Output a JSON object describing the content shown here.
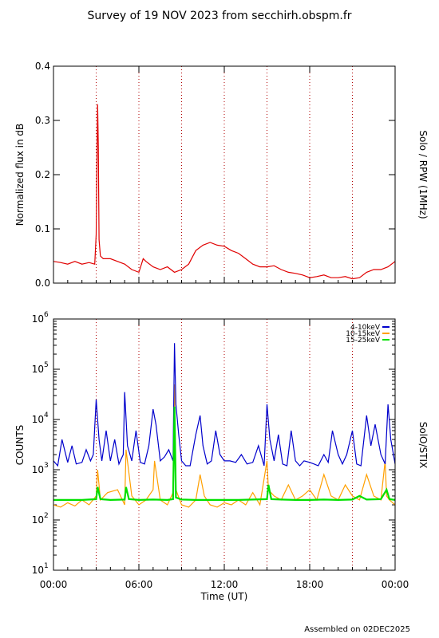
{
  "title": "Survey of 19 NOV 2023 from secchirh.obspm.fr",
  "footer": "Assembled on 02DEC2025",
  "colors": {
    "rpw": "#e00000",
    "low": "#0000cc",
    "mid": "#ffa000",
    "high": "#00e000",
    "hour_lines": "#b00000"
  },
  "chart_data": [
    {
      "type": "line",
      "right_label": "Solo / RPW (1MHz)",
      "ylabel": "Normalized flux in dB",
      "xlim": [
        0,
        24
      ],
      "ylim": [
        0,
        0.4
      ],
      "yticks": [
        "0.0",
        "0.1",
        "0.2",
        "0.3",
        "0.4"
      ],
      "grid_x_hours": [
        3,
        6,
        9,
        12,
        15,
        18,
        21
      ],
      "series": [
        {
          "x": [
            0,
            0.5,
            1,
            1.5,
            2,
            2.5,
            2.9,
            3.0,
            3.1,
            3.15,
            3.2,
            3.3,
            3.5,
            4,
            4.5,
            5,
            5.5,
            6,
            6.3,
            6.5,
            7,
            7.5,
            8,
            8.5,
            9,
            9.5,
            10,
            10.5,
            11,
            11.5,
            12,
            12.5,
            13,
            13.5,
            14,
            14.5,
            15,
            15.5,
            16,
            16.5,
            17,
            17.5,
            18,
            18.5,
            19,
            19.5,
            20,
            20.5,
            21,
            21.5,
            22,
            22.5,
            23,
            23.5,
            24
          ],
          "y": [
            0.04,
            0.038,
            0.035,
            0.04,
            0.035,
            0.038,
            0.035,
            0.09,
            0.33,
            0.25,
            0.08,
            0.05,
            0.045,
            0.045,
            0.04,
            0.035,
            0.025,
            0.02,
            0.045,
            0.04,
            0.03,
            0.025,
            0.03,
            0.02,
            0.025,
            0.035,
            0.06,
            0.07,
            0.075,
            0.07,
            0.068,
            0.06,
            0.055,
            0.045,
            0.035,
            0.03,
            0.03,
            0.032,
            0.025,
            0.02,
            0.018,
            0.015,
            0.01,
            0.012,
            0.015,
            0.01,
            0.01,
            0.012,
            0.008,
            0.01,
            0.02,
            0.025,
            0.025,
            0.03,
            0.04
          ]
        }
      ]
    },
    {
      "type": "line",
      "right_label": "SolO/STIX",
      "ylabel": "COUNTS",
      "xlabel": "Time (UT)",
      "xticks": [
        "00:00",
        "06:00",
        "12:00",
        "18:00",
        "00:00"
      ],
      "xlim": [
        0,
        24
      ],
      "ylim_log10": [
        1,
        6
      ],
      "ytick_bases": [
        "10",
        "10",
        "10",
        "10",
        "10",
        "10"
      ],
      "ytick_exps": [
        "1",
        "2",
        "3",
        "4",
        "5",
        "6"
      ],
      "grid_x_hours": [
        3,
        6,
        9,
        12,
        15,
        18,
        21
      ],
      "series": [
        {
          "name": "4-10keV",
          "x": [
            0,
            0.3,
            0.6,
            1,
            1.3,
            1.6,
            2,
            2.3,
            2.6,
            2.8,
            3.0,
            3.2,
            3.4,
            3.7,
            4,
            4.3,
            4.6,
            4.9,
            5.0,
            5.2,
            5.5,
            5.8,
            6.1,
            6.4,
            6.7,
            7.0,
            7.2,
            7.5,
            7.8,
            8.1,
            8.4,
            8.5,
            8.6,
            8.8,
            9.0,
            9.3,
            9.6,
            10.0,
            10.3,
            10.5,
            10.8,
            11.1,
            11.4,
            11.7,
            12.0,
            12.4,
            12.8,
            13.2,
            13.6,
            14.0,
            14.4,
            14.8,
            15.0,
            15.2,
            15.5,
            15.8,
            16.1,
            16.4,
            16.7,
            17.0,
            17.3,
            17.6,
            18.0,
            18.3,
            18.6,
            19.0,
            19.3,
            19.6,
            20.0,
            20.3,
            20.6,
            21.0,
            21.3,
            21.6,
            22.0,
            22.3,
            22.6,
            23.0,
            23.3,
            23.5,
            23.7,
            24
          ],
          "y": [
            1500,
            1200,
            4000,
            1400,
            3000,
            1300,
            1400,
            2500,
            1500,
            2000,
            25000,
            4000,
            1500,
            6000,
            1500,
            4000,
            1300,
            2000,
            35000,
            3000,
            1500,
            6000,
            1400,
            1300,
            3000,
            16000,
            8000,
            1500,
            1800,
            2500,
            1500,
            330000,
            20000,
            5000,
            1500,
            1200,
            1200,
            5000,
            12000,
            3000,
            1300,
            1500,
            6000,
            2000,
            1500,
            1500,
            1400,
            2000,
            1300,
            1400,
            3000,
            1200,
            20000,
            4000,
            1500,
            5000,
            1300,
            1200,
            6000,
            1500,
            1200,
            1500,
            1400,
            1300,
            1200,
            2000,
            1400,
            6000,
            2000,
            1300,
            2000,
            6000,
            1300,
            1200,
            12000,
            3000,
            8000,
            2000,
            1300,
            20000,
            4000,
            1300
          ]
        },
        {
          "name": "10-15keV",
          "x": [
            0,
            0.5,
            1,
            1.5,
            2,
            2.5,
            3.0,
            3.1,
            3.3,
            3.8,
            4.5,
            5.0,
            5.1,
            5.5,
            6,
            6.5,
            7.0,
            7.1,
            7.5,
            8,
            8.4,
            8.5,
            8.6,
            9,
            9.5,
            10,
            10.3,
            10.6,
            11,
            11.5,
            12,
            12.5,
            13,
            13.5,
            14,
            14.5,
            15.0,
            15.1,
            15.5,
            16,
            16.5,
            17,
            17.5,
            18,
            18.5,
            19,
            19.5,
            20,
            20.5,
            21,
            21.5,
            22,
            22.5,
            23,
            23.3,
            23.4,
            23.6,
            24
          ],
          "y": [
            200,
            180,
            220,
            190,
            250,
            200,
            300,
            1000,
            250,
            350,
            400,
            200,
            2500,
            300,
            200,
            250,
            400,
            1500,
            250,
            200,
            350,
            50000,
            400,
            200,
            180,
            250,
            800,
            300,
            200,
            180,
            220,
            200,
            250,
            200,
            350,
            200,
            1500,
            400,
            300,
            250,
            500,
            250,
            300,
            400,
            250,
            800,
            300,
            250,
            500,
            300,
            250,
            800,
            300,
            250,
            1500,
            300,
            250,
            200
          ]
        },
        {
          "name": "15-25keV",
          "x": [
            0,
            1,
            2,
            3.0,
            3.1,
            3.3,
            4,
            5,
            5.1,
            5.3,
            6,
            7,
            8,
            8.4,
            8.5,
            8.6,
            9,
            10,
            11,
            12,
            13,
            14,
            15.0,
            15.1,
            15.3,
            16,
            17,
            18,
            19,
            20,
            21,
            21.5,
            22,
            23,
            23.4,
            23.6,
            24
          ],
          "y": [
            250,
            250,
            250,
            260,
            450,
            260,
            250,
            255,
            450,
            260,
            250,
            255,
            250,
            260,
            18000,
            280,
            255,
            250,
            250,
            250,
            250,
            255,
            260,
            500,
            260,
            255,
            250,
            250,
            255,
            250,
            255,
            300,
            255,
            260,
            400,
            260,
            250
          ]
        }
      ]
    }
  ]
}
